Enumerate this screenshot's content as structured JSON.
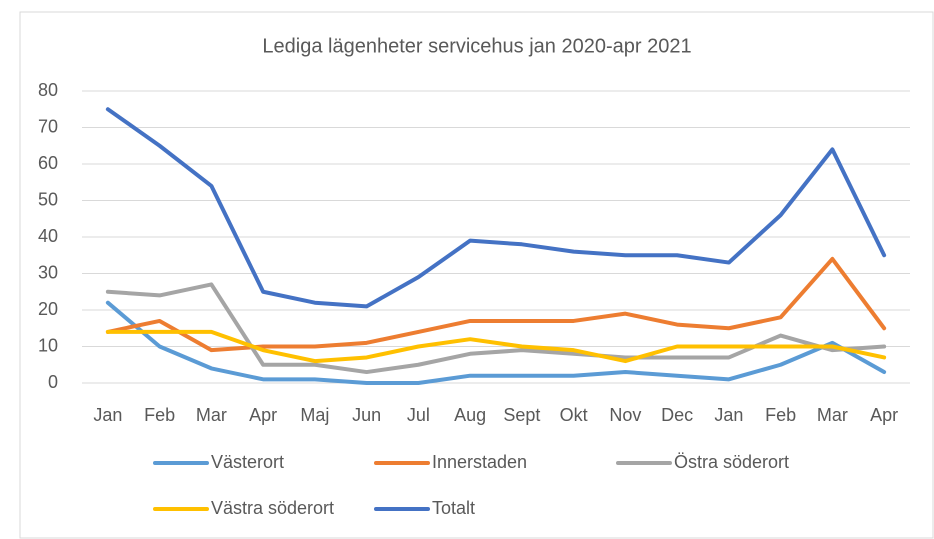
{
  "chart_data": {
    "type": "line",
    "title": "Lediga lägenheter servicehus jan 2020-apr 2021",
    "categories": [
      "Jan",
      "Feb",
      "Mar",
      "Apr",
      "Maj",
      "Jun",
      "Jul",
      "Aug",
      "Sept",
      "Okt",
      "Nov",
      "Dec",
      "Jan",
      "Feb",
      "Mar",
      "Apr"
    ],
    "series": [
      {
        "name": "Västerort",
        "color": "#5b9bd5",
        "values": [
          22,
          10,
          4,
          1,
          1,
          0,
          0,
          2,
          2,
          2,
          3,
          2,
          1,
          5,
          11,
          3
        ]
      },
      {
        "name": "Innerstaden",
        "color": "#ed7d31",
        "values": [
          14,
          17,
          9,
          10,
          10,
          11,
          14,
          17,
          17,
          17,
          19,
          16,
          15,
          18,
          34,
          15
        ]
      },
      {
        "name": "Östra söderort",
        "color": "#a5a5a5",
        "values": [
          25,
          24,
          27,
          5,
          5,
          3,
          5,
          8,
          9,
          8,
          7,
          7,
          7,
          13,
          9,
          10
        ]
      },
      {
        "name": "Västra söderort",
        "color": "#ffc000",
        "values": [
          14,
          14,
          14,
          9,
          6,
          7,
          10,
          12,
          10,
          9,
          6,
          10,
          10,
          10,
          10,
          7
        ]
      },
      {
        "name": "Totalt",
        "color": "#4472c4",
        "values": [
          75,
          65,
          54,
          25,
          22,
          21,
          29,
          39,
          38,
          36,
          35,
          35,
          33,
          46,
          64,
          35
        ]
      }
    ],
    "ylim": [
      0,
      80
    ],
    "yticks": [
      0,
      10,
      20,
      30,
      40,
      50,
      60,
      70,
      80
    ],
    "grid": true,
    "legend": "bottom"
  }
}
